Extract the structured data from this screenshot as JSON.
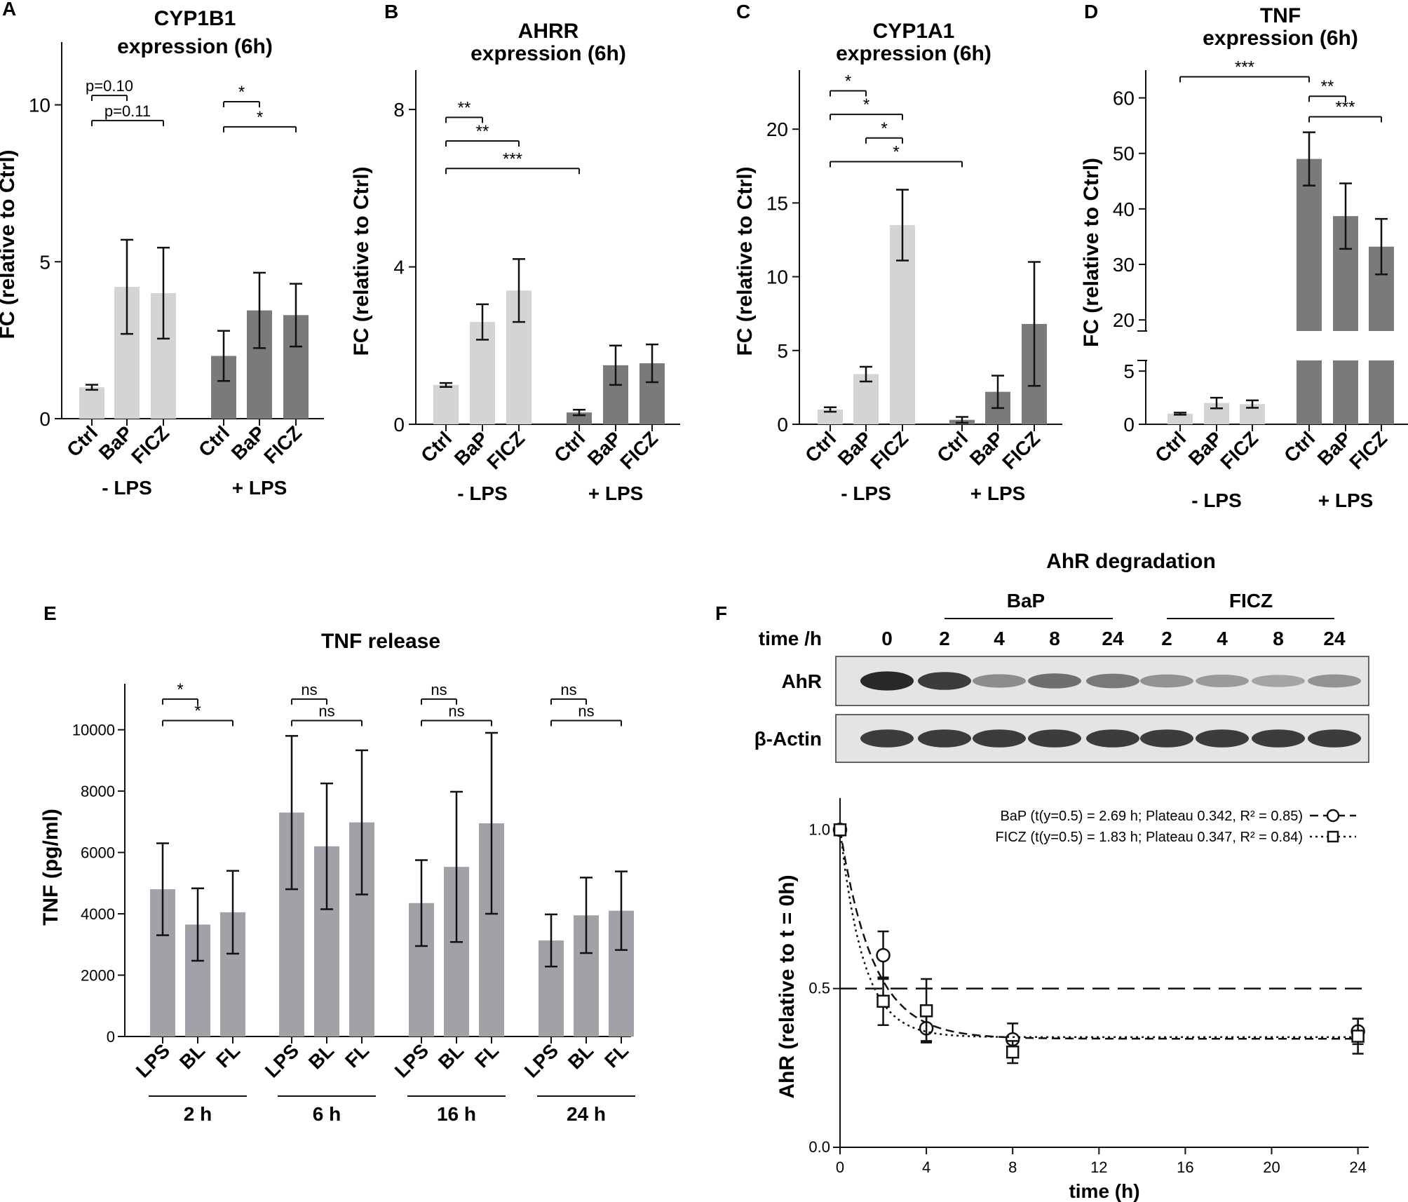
{
  "colors": {
    "light": "#d4d4d4",
    "dark": "#7a7a7a",
    "mid": "#a1a1a7",
    "axis": "#111111"
  },
  "chart_data": [
    {
      "id": "A",
      "panel_label": "A",
      "type": "bar",
      "title": [
        "CYP1B1",
        "expression (6h)"
      ],
      "ylabel": "FC (relative to Ctrl)",
      "ylim": [
        0,
        12
      ],
      "yticks": [
        0,
        5,
        10
      ],
      "categories": [
        "Ctrl",
        "BaP",
        "FICZ",
        "Ctrl",
        "BaP",
        "FICZ"
      ],
      "values": [
        1.0,
        4.2,
        4.0,
        2.0,
        3.45,
        3.3
      ],
      "errors": [
        0.08,
        1.5,
        1.45,
        0.8,
        1.2,
        1.0
      ],
      "shades": [
        "light",
        "light",
        "light",
        "dark",
        "dark",
        "dark"
      ],
      "groups": [
        "- LPS",
        "+ LPS"
      ],
      "comparisons": [
        {
          "from": 0,
          "to": 1,
          "y": 10.3,
          "text": "p=0.10"
        },
        {
          "from": 0,
          "to": 2,
          "y": 9.5,
          "text": "p=0.11"
        },
        {
          "from": 3,
          "to": 4,
          "y": 10.1,
          "text": "*"
        },
        {
          "from": 3,
          "to": 5,
          "y": 9.3,
          "text": "*"
        }
      ]
    },
    {
      "id": "B",
      "panel_label": "B",
      "type": "bar",
      "title": [
        "AHRR",
        "expression (6h)"
      ],
      "ylabel": "FC (relative to Ctrl)",
      "ylim": [
        0,
        9
      ],
      "yticks": [
        0,
        4,
        8
      ],
      "categories": [
        "Ctrl",
        "BaP",
        "FICZ",
        "Ctrl",
        "BaP",
        "FICZ"
      ],
      "values": [
        1.0,
        2.6,
        3.4,
        0.3,
        1.5,
        1.55
      ],
      "errors": [
        0.05,
        0.45,
        0.8,
        0.07,
        0.5,
        0.48
      ],
      "shades": [
        "light",
        "light",
        "light",
        "dark",
        "dark",
        "dark"
      ],
      "groups": [
        "- LPS",
        "+ LPS"
      ],
      "comparisons": [
        {
          "from": 0,
          "to": 1,
          "y": 7.8,
          "text": "**"
        },
        {
          "from": 0,
          "to": 2,
          "y": 7.2,
          "text": "**"
        },
        {
          "from": 0,
          "to": 3,
          "y": 6.5,
          "text": "***"
        }
      ]
    },
    {
      "id": "C",
      "panel_label": "C",
      "type": "bar",
      "title": [
        "CYP1A1",
        "expression (6h)"
      ],
      "ylabel": "FC (relative to Ctrl)",
      "ylim": [
        0,
        24
      ],
      "yticks": [
        0,
        5,
        10,
        15,
        20
      ],
      "categories": [
        "Ctrl",
        "BaP",
        "FICZ",
        "Ctrl",
        "BaP",
        "FICZ"
      ],
      "values": [
        1.0,
        3.4,
        13.5,
        0.3,
        2.2,
        6.8
      ],
      "errors": [
        0.15,
        0.5,
        2.4,
        0.2,
        1.1,
        4.2
      ],
      "shades": [
        "light",
        "light",
        "light",
        "dark",
        "dark",
        "dark"
      ],
      "groups": [
        "- LPS",
        "+ LPS"
      ],
      "comparisons": [
        {
          "from": 0,
          "to": 1,
          "y": 22.6,
          "text": "*"
        },
        {
          "from": 0,
          "to": 2,
          "y": 21.0,
          "text": "*"
        },
        {
          "from": 1,
          "to": 2,
          "y": 19.4,
          "text": "*"
        },
        {
          "from": 0,
          "to": 3,
          "y": 17.8,
          "text": "*"
        }
      ]
    },
    {
      "id": "D",
      "panel_label": "D",
      "type": "bar",
      "title": [
        "TNF",
        "expression (6h)"
      ],
      "ylabel": "FC (relative to Ctrl)",
      "axis_break": {
        "lower": [
          0,
          6
        ],
        "upper": [
          18,
          65
        ]
      },
      "yticks_lower": [
        0,
        5
      ],
      "yticks_upper": [
        20,
        30,
        40,
        50,
        60
      ],
      "categories": [
        "Ctrl",
        "BaP",
        "FICZ",
        "Ctrl",
        "BaP",
        "FICZ"
      ],
      "values": [
        1.0,
        2.0,
        1.9,
        49.0,
        38.7,
        33.2
      ],
      "errors": [
        0.1,
        0.5,
        0.35,
        4.8,
        5.9,
        5.0
      ],
      "shades": [
        "light",
        "light",
        "light",
        "dark",
        "dark",
        "dark"
      ],
      "groups": [
        "- LPS",
        "+ LPS"
      ],
      "comparisons": [
        {
          "from": 0,
          "to": 3,
          "y": 63.8,
          "text": "***"
        },
        {
          "from": 3,
          "to": 4,
          "y": 60.3,
          "text": "**"
        },
        {
          "from": 3,
          "to": 5,
          "y": 56.6,
          "text": "***"
        }
      ]
    },
    {
      "id": "E",
      "panel_label": "E",
      "type": "bar",
      "title": [
        "TNF release"
      ],
      "ylabel": "TNF (pg/ml)",
      "ylim": [
        0,
        11500
      ],
      "yticks": [
        0,
        2000,
        4000,
        6000,
        8000,
        10000
      ],
      "categories": [
        "LPS",
        "BL",
        "FL",
        "LPS",
        "BL",
        "FL",
        "LPS",
        "BL",
        "FL",
        "LPS",
        "BL",
        "FL"
      ],
      "values": [
        4800,
        3650,
        4050,
        7300,
        6200,
        6980,
        4350,
        5530,
        6950,
        3130,
        3950,
        4100
      ],
      "errors": [
        1500,
        1180,
        1350,
        2500,
        2050,
        2350,
        1400,
        2450,
        2950,
        850,
        1230,
        1280
      ],
      "groups": [
        "2 h",
        "6 h",
        "16 h",
        "24 h"
      ],
      "comparisons": [
        {
          "from": 0,
          "to": 1,
          "y": 11000,
          "text": "*"
        },
        {
          "from": 0,
          "to": 2,
          "y": 10300,
          "text": "*"
        },
        {
          "from": 3,
          "to": 4,
          "y": 11000,
          "text": "ns"
        },
        {
          "from": 3,
          "to": 5,
          "y": 10300,
          "text": "ns"
        },
        {
          "from": 6,
          "to": 7,
          "y": 11000,
          "text": "ns"
        },
        {
          "from": 6,
          "to": 8,
          "y": 10300,
          "text": "ns"
        },
        {
          "from": 9,
          "to": 10,
          "y": 11000,
          "text": "ns"
        },
        {
          "from": 9,
          "to": 11,
          "y": 10300,
          "text": "ns"
        }
      ]
    },
    {
      "id": "F",
      "panel_label": "F",
      "type": "scatter",
      "title": "AhR degradation",
      "xlabel": "time (h)",
      "ylabel": "AhR (relative to t = 0h)",
      "xlim": [
        0,
        24.5
      ],
      "xticks": [
        0,
        4,
        8,
        12,
        16,
        20,
        24
      ],
      "ylim": [
        0,
        1.1
      ],
      "yticks": [
        0.0,
        0.5,
        1.0
      ],
      "ytick_labels": [
        "0.0",
        "0.5",
        "1.0"
      ],
      "reference_line": 0.5,
      "series": [
        {
          "name": "BaP",
          "legend": "BaP (t(y=0.5) = 2.69 h; Plateau 0.342, R² = 0.85)",
          "marker": "circle",
          "dash": "12,7",
          "x": [
            0,
            2,
            4,
            8,
            24
          ],
          "y": [
            1.0,
            0.605,
            0.375,
            0.34,
            0.365
          ],
          "err": [
            0.0,
            0.075,
            0.04,
            0.05,
            0.04
          ],
          "plateau": 0.342,
          "rate": 0.645
        },
        {
          "name": "FICZ",
          "legend": "FICZ (t(y=0.5) = 1.83 h; Plateau 0.347, R² = 0.84)",
          "marker": "square",
          "dash": "3,5",
          "x": [
            0,
            2,
            4,
            8,
            24
          ],
          "y": [
            1.0,
            0.46,
            0.43,
            0.3,
            0.35
          ],
          "err": [
            0.0,
            0.075,
            0.1,
            0.035,
            0.055
          ],
          "plateau": 0.347,
          "rate": 0.91
        }
      ]
    }
  ],
  "western_blot": {
    "time_label": "time /h",
    "times": [
      "0",
      "2",
      "4",
      "8",
      "24",
      "2",
      "4",
      "8",
      "24"
    ],
    "treatments": [
      "BaP",
      "FICZ"
    ],
    "rows": [
      {
        "label": "AhR",
        "intensity": [
          0.95,
          0.85,
          0.45,
          0.6,
          0.55,
          0.42,
          0.38,
          0.33,
          0.42
        ]
      },
      {
        "label": "β-Actin",
        "intensity": [
          0.85,
          0.85,
          0.85,
          0.85,
          0.85,
          0.85,
          0.85,
          0.85,
          0.85
        ]
      }
    ]
  }
}
